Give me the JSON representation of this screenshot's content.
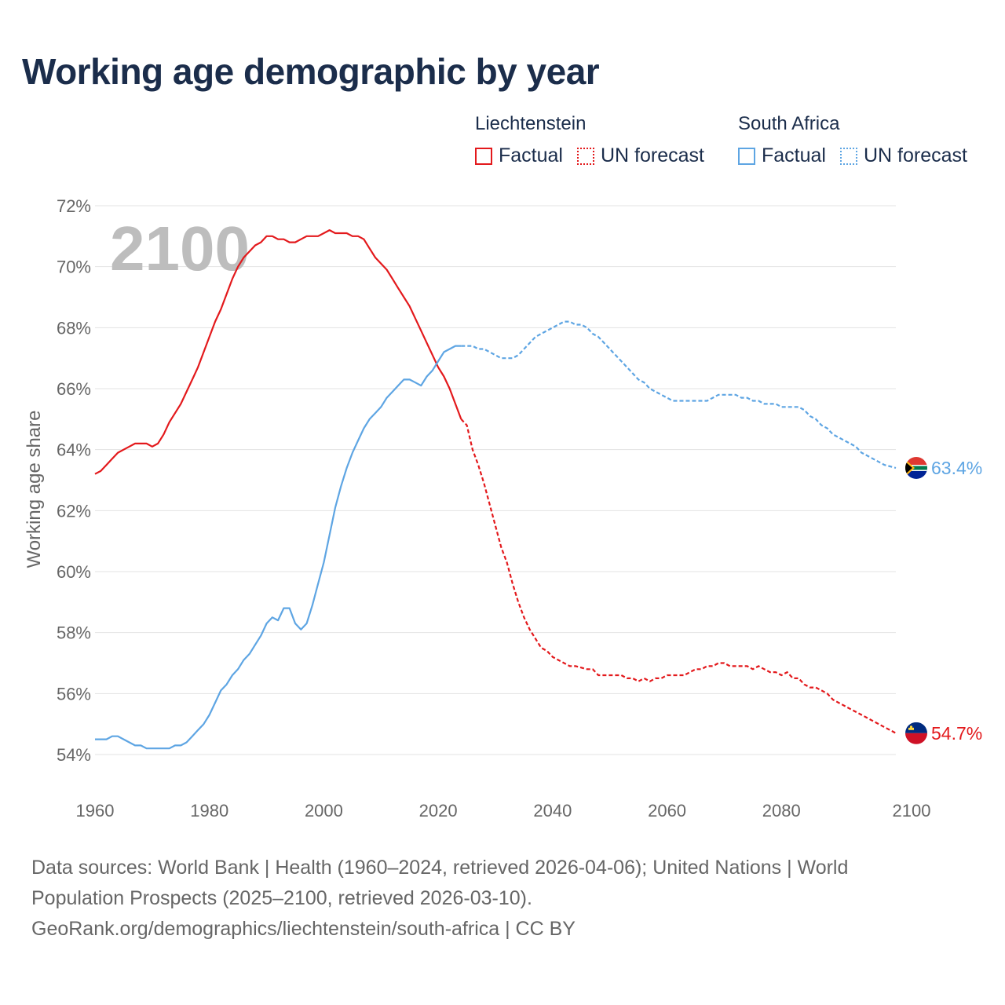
{
  "title": "Working age demographic by year",
  "year_overlay": "2100",
  "legend": {
    "groups": [
      {
        "name": "Liechtenstein",
        "color": "#e3191c",
        "factual_label": "Factual",
        "forecast_label": "UN forecast"
      },
      {
        "name": "South Africa",
        "color": "#5ea5e3",
        "factual_label": "Factual",
        "forecast_label": "UN forecast"
      }
    ]
  },
  "footer": {
    "sources": "Data sources: World Bank | Health (1960–2024, retrieved 2026-04-06); United Nations | World Population Prospects (2025–2100, retrieved 2026-03-10).",
    "credit": "GeoRank.org/demographics/liechtenstein/south-africa | CC BY"
  },
  "chart_data": {
    "type": "line",
    "ylabel": "Working age share",
    "xlabel": "",
    "xlim": [
      1960,
      2100
    ],
    "ylim": [
      53.5,
      72
    ],
    "x_ticks": [
      1960,
      1980,
      2000,
      2020,
      2040,
      2060,
      2080,
      2100
    ],
    "x_tick_labels": [
      "1960",
      "1980",
      "2000",
      "2020",
      "2040",
      "2060",
      "2080",
      "2100"
    ],
    "y_ticks": [
      54,
      56,
      58,
      60,
      62,
      64,
      66,
      68,
      70,
      72
    ],
    "y_tick_labels": [
      "54%",
      "56%",
      "58%",
      "60%",
      "62%",
      "64%",
      "66%",
      "68%",
      "70%",
      "72%"
    ],
    "forecast_start": 2024,
    "series": [
      {
        "name": "Liechtenstein",
        "color": "#e3191c",
        "end_label": "54.7%",
        "flag": "liechtenstein-flag",
        "points": [
          [
            1960,
            63.2
          ],
          [
            1961,
            63.3
          ],
          [
            1962,
            63.5
          ],
          [
            1963,
            63.7
          ],
          [
            1964,
            63.9
          ],
          [
            1965,
            64.0
          ],
          [
            1966,
            64.1
          ],
          [
            1967,
            64.2
          ],
          [
            1968,
            64.2
          ],
          [
            1969,
            64.2
          ],
          [
            1970,
            64.1
          ],
          [
            1971,
            64.2
          ],
          [
            1972,
            64.5
          ],
          [
            1973,
            64.9
          ],
          [
            1974,
            65.2
          ],
          [
            1975,
            65.5
          ],
          [
            1976,
            65.9
          ],
          [
            1977,
            66.3
          ],
          [
            1978,
            66.7
          ],
          [
            1979,
            67.2
          ],
          [
            1980,
            67.7
          ],
          [
            1981,
            68.2
          ],
          [
            1982,
            68.6
          ],
          [
            1983,
            69.1
          ],
          [
            1984,
            69.6
          ],
          [
            1985,
            70.0
          ],
          [
            1986,
            70.3
          ],
          [
            1987,
            70.5
          ],
          [
            1988,
            70.7
          ],
          [
            1989,
            70.8
          ],
          [
            1990,
            71.0
          ],
          [
            1991,
            71.0
          ],
          [
            1992,
            70.9
          ],
          [
            1993,
            70.9
          ],
          [
            1994,
            70.8
          ],
          [
            1995,
            70.8
          ],
          [
            1996,
            70.9
          ],
          [
            1997,
            71.0
          ],
          [
            1998,
            71.0
          ],
          [
            1999,
            71.0
          ],
          [
            2000,
            71.1
          ],
          [
            2001,
            71.2
          ],
          [
            2002,
            71.1
          ],
          [
            2003,
            71.1
          ],
          [
            2004,
            71.1
          ],
          [
            2005,
            71.0
          ],
          [
            2006,
            71.0
          ],
          [
            2007,
            70.9
          ],
          [
            2008,
            70.6
          ],
          [
            2009,
            70.3
          ],
          [
            2010,
            70.1
          ],
          [
            2011,
            69.9
          ],
          [
            2012,
            69.6
          ],
          [
            2013,
            69.3
          ],
          [
            2014,
            69.0
          ],
          [
            2015,
            68.7
          ],
          [
            2016,
            68.3
          ],
          [
            2017,
            67.9
          ],
          [
            2018,
            67.5
          ],
          [
            2019,
            67.1
          ],
          [
            2020,
            66.7
          ],
          [
            2021,
            66.4
          ],
          [
            2022,
            66.0
          ],
          [
            2023,
            65.5
          ],
          [
            2024,
            65.0
          ],
          [
            2025,
            64.8
          ],
          [
            2026,
            64.0
          ],
          [
            2027,
            63.5
          ],
          [
            2028,
            62.9
          ],
          [
            2029,
            62.2
          ],
          [
            2030,
            61.5
          ],
          [
            2031,
            60.8
          ],
          [
            2032,
            60.3
          ],
          [
            2033,
            59.6
          ],
          [
            2034,
            59.0
          ],
          [
            2035,
            58.5
          ],
          [
            2036,
            58.1
          ],
          [
            2037,
            57.8
          ],
          [
            2038,
            57.5
          ],
          [
            2039,
            57.4
          ],
          [
            2040,
            57.2
          ],
          [
            2041,
            57.1
          ],
          [
            2042,
            57.0
          ],
          [
            2043,
            56.9
          ],
          [
            2044,
            56.9
          ],
          [
            2045,
            56.85
          ],
          [
            2046,
            56.8
          ],
          [
            2047,
            56.8
          ],
          [
            2048,
            56.6
          ],
          [
            2049,
            56.6
          ],
          [
            2050,
            56.6
          ],
          [
            2051,
            56.6
          ],
          [
            2052,
            56.6
          ],
          [
            2053,
            56.5
          ],
          [
            2054,
            56.5
          ],
          [
            2055,
            56.4
          ],
          [
            2056,
            56.5
          ],
          [
            2057,
            56.4
          ],
          [
            2058,
            56.5
          ],
          [
            2059,
            56.5
          ],
          [
            2060,
            56.6
          ],
          [
            2061,
            56.6
          ],
          [
            2062,
            56.6
          ],
          [
            2063,
            56.6
          ],
          [
            2064,
            56.7
          ],
          [
            2065,
            56.8
          ],
          [
            2066,
            56.8
          ],
          [
            2067,
            56.9
          ],
          [
            2068,
            56.9
          ],
          [
            2069,
            57.0
          ],
          [
            2070,
            57.0
          ],
          [
            2071,
            56.9
          ],
          [
            2072,
            56.9
          ],
          [
            2073,
            56.9
          ],
          [
            2074,
            56.9
          ],
          [
            2075,
            56.8
          ],
          [
            2076,
            56.9
          ],
          [
            2077,
            56.8
          ],
          [
            2078,
            56.7
          ],
          [
            2079,
            56.7
          ],
          [
            2080,
            56.6
          ],
          [
            2081,
            56.7
          ],
          [
            2082,
            56.5
          ],
          [
            2083,
            56.5
          ],
          [
            2084,
            56.3
          ],
          [
            2085,
            56.2
          ],
          [
            2086,
            56.2
          ],
          [
            2087,
            56.1
          ],
          [
            2088,
            56.0
          ],
          [
            2089,
            55.8
          ],
          [
            2090,
            55.7
          ],
          [
            2091,
            55.6
          ],
          [
            2092,
            55.5
          ],
          [
            2093,
            55.4
          ],
          [
            2094,
            55.3
          ],
          [
            2095,
            55.2
          ],
          [
            2096,
            55.1
          ],
          [
            2097,
            55.0
          ],
          [
            2098,
            54.9
          ],
          [
            2099,
            54.8
          ],
          [
            2100,
            54.7
          ]
        ]
      },
      {
        "name": "South Africa",
        "color": "#5ea5e3",
        "end_label": "63.4%",
        "flag": "south-africa-flag",
        "points": [
          [
            1960,
            54.5
          ],
          [
            1961,
            54.5
          ],
          [
            1962,
            54.5
          ],
          [
            1963,
            54.6
          ],
          [
            1964,
            54.6
          ],
          [
            1965,
            54.5
          ],
          [
            1966,
            54.4
          ],
          [
            1967,
            54.3
          ],
          [
            1968,
            54.3
          ],
          [
            1969,
            54.2
          ],
          [
            1970,
            54.2
          ],
          [
            1971,
            54.2
          ],
          [
            1972,
            54.2
          ],
          [
            1973,
            54.2
          ],
          [
            1974,
            54.3
          ],
          [
            1975,
            54.3
          ],
          [
            1976,
            54.4
          ],
          [
            1977,
            54.6
          ],
          [
            1978,
            54.8
          ],
          [
            1979,
            55.0
          ],
          [
            1980,
            55.3
          ],
          [
            1981,
            55.7
          ],
          [
            1982,
            56.1
          ],
          [
            1983,
            56.3
          ],
          [
            1984,
            56.6
          ],
          [
            1985,
            56.8
          ],
          [
            1986,
            57.1
          ],
          [
            1987,
            57.3
          ],
          [
            1988,
            57.6
          ],
          [
            1989,
            57.9
          ],
          [
            1990,
            58.3
          ],
          [
            1991,
            58.5
          ],
          [
            1992,
            58.4
          ],
          [
            1993,
            58.8
          ],
          [
            1994,
            58.8
          ],
          [
            1995,
            58.3
          ],
          [
            1996,
            58.1
          ],
          [
            1997,
            58.3
          ],
          [
            1998,
            58.9
          ],
          [
            1999,
            59.6
          ],
          [
            2000,
            60.3
          ],
          [
            2001,
            61.2
          ],
          [
            2002,
            62.1
          ],
          [
            2003,
            62.8
          ],
          [
            2004,
            63.4
          ],
          [
            2005,
            63.9
          ],
          [
            2006,
            64.3
          ],
          [
            2007,
            64.7
          ],
          [
            2008,
            65.0
          ],
          [
            2009,
            65.2
          ],
          [
            2010,
            65.4
          ],
          [
            2011,
            65.7
          ],
          [
            2012,
            65.9
          ],
          [
            2013,
            66.1
          ],
          [
            2014,
            66.3
          ],
          [
            2015,
            66.3
          ],
          [
            2016,
            66.2
          ],
          [
            2017,
            66.1
          ],
          [
            2018,
            66.4
          ],
          [
            2019,
            66.6
          ],
          [
            2020,
            66.9
          ],
          [
            2021,
            67.2
          ],
          [
            2022,
            67.3
          ],
          [
            2023,
            67.4
          ],
          [
            2024,
            67.4
          ],
          [
            2025,
            67.4
          ],
          [
            2026,
            67.4
          ],
          [
            2027,
            67.3
          ],
          [
            2028,
            67.3
          ],
          [
            2029,
            67.2
          ],
          [
            2030,
            67.1
          ],
          [
            2031,
            67.0
          ],
          [
            2032,
            67.0
          ],
          [
            2033,
            67.0
          ],
          [
            2034,
            67.1
          ],
          [
            2035,
            67.3
          ],
          [
            2036,
            67.5
          ],
          [
            2037,
            67.7
          ],
          [
            2038,
            67.8
          ],
          [
            2039,
            67.9
          ],
          [
            2040,
            68.0
          ],
          [
            2041,
            68.1
          ],
          [
            2042,
            68.2
          ],
          [
            2043,
            68.2
          ],
          [
            2044,
            68.1
          ],
          [
            2045,
            68.1
          ],
          [
            2046,
            68.0
          ],
          [
            2047,
            67.8
          ],
          [
            2048,
            67.7
          ],
          [
            2049,
            67.5
          ],
          [
            2050,
            67.3
          ],
          [
            2051,
            67.1
          ],
          [
            2052,
            66.9
          ],
          [
            2053,
            66.7
          ],
          [
            2054,
            66.5
          ],
          [
            2055,
            66.3
          ],
          [
            2056,
            66.2
          ],
          [
            2057,
            66.0
          ],
          [
            2058,
            65.9
          ],
          [
            2059,
            65.8
          ],
          [
            2060,
            65.7
          ],
          [
            2061,
            65.6
          ],
          [
            2062,
            65.6
          ],
          [
            2063,
            65.6
          ],
          [
            2064,
            65.6
          ],
          [
            2065,
            65.6
          ],
          [
            2066,
            65.6
          ],
          [
            2067,
            65.6
          ],
          [
            2068,
            65.7
          ],
          [
            2069,
            65.8
          ],
          [
            2070,
            65.8
          ],
          [
            2071,
            65.8
          ],
          [
            2072,
            65.8
          ],
          [
            2073,
            65.7
          ],
          [
            2074,
            65.7
          ],
          [
            2075,
            65.6
          ],
          [
            2076,
            65.6
          ],
          [
            2077,
            65.5
          ],
          [
            2078,
            65.5
          ],
          [
            2079,
            65.5
          ],
          [
            2080,
            65.4
          ],
          [
            2081,
            65.4
          ],
          [
            2082,
            65.4
          ],
          [
            2083,
            65.4
          ],
          [
            2084,
            65.3
          ],
          [
            2085,
            65.1
          ],
          [
            2086,
            65.0
          ],
          [
            2087,
            64.8
          ],
          [
            2088,
            64.7
          ],
          [
            2089,
            64.5
          ],
          [
            2090,
            64.4
          ],
          [
            2091,
            64.3
          ],
          [
            2092,
            64.2
          ],
          [
            2093,
            64.1
          ],
          [
            2094,
            63.9
          ],
          [
            2095,
            63.8
          ],
          [
            2096,
            63.7
          ],
          [
            2097,
            63.6
          ],
          [
            2098,
            63.5
          ],
          [
            2099,
            63.45
          ],
          [
            2100,
            63.4
          ]
        ]
      }
    ]
  }
}
